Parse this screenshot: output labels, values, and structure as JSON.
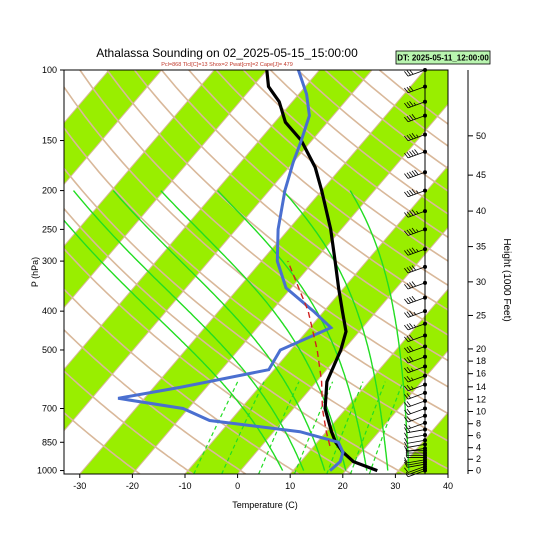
{
  "chart_data": {
    "type": "line",
    "title": "Athalassa Sounding on 02_2025-05-15_15:00:00",
    "subtitle": "Pcl=868 Tlcl[C]=13 Shox=2 Pwat[cm]=2 Cape[J]= 479",
    "valid_time_badge": "DT: 2025-05-11_12:00:00",
    "xlabel": "Temperature (C)",
    "ylabel": "P (hPa)",
    "right_axis_label": "Height (1000 Feet)",
    "xlim": [
      -33,
      40
    ],
    "plim": [
      1020,
      100
    ],
    "pressure_scale": "log",
    "skew_per_decade_C": 65,
    "x_ticks": [
      "-30",
      "-20",
      "-10",
      "0",
      "10",
      "20",
      "30",
      "40"
    ],
    "x_tick_values": [
      -30,
      -20,
      -10,
      0,
      10,
      20,
      30,
      40
    ],
    "p_ticks": [
      "100",
      "150",
      "200",
      "250",
      "300",
      "400",
      "500",
      "700",
      "850",
      "1000"
    ],
    "p_tick_values": [
      100,
      150,
      200,
      250,
      300,
      400,
      500,
      700,
      850,
      1000
    ],
    "height_ticks": [
      "0",
      "2",
      "4",
      "6",
      "8",
      "10",
      "12",
      "14",
      "16",
      "18",
      "20",
      "25",
      "30",
      "35",
      "40",
      "45",
      "50"
    ],
    "height_tick_pressures": [
      1000,
      937,
      877,
      818,
      764,
      712,
      664,
      618,
      573,
      533,
      497,
      410,
      338,
      276,
      225,
      183,
      146
    ],
    "isotherm_labels_left": [
      "-30",
      "-20",
      "-10",
      "0",
      "10",
      "20",
      "30"
    ],
    "isotherm_labels_left_values": [
      -30,
      -20,
      -10,
      0,
      10,
      20,
      30
    ],
    "mixing_ratio_labels": [
      "2",
      "3",
      "5",
      "8",
      "12",
      "16",
      "20"
    ],
    "dry_adiabat_labels": [
      "30",
      "20",
      "10",
      "0"
    ],
    "moist_adiabat_labels": [
      "8",
      "12",
      "16",
      "20",
      "24",
      "28",
      "32"
    ],
    "moist_adiabat_thetas": [
      8,
      12,
      16,
      20,
      24,
      28,
      32
    ],
    "series": [
      {
        "color": "#000000",
        "points": [
          [
            1000,
            26
          ],
          [
            950,
            20
          ],
          [
            900,
            16.5
          ],
          [
            850,
            13.5
          ],
          [
            800,
            11
          ],
          [
            700,
            6
          ],
          [
            600,
            2
          ],
          [
            500,
            -0.5
          ],
          [
            450,
            -2.5
          ],
          [
            400,
            -6.5
          ],
          [
            350,
            -11
          ],
          [
            300,
            -16
          ],
          [
            250,
            -22
          ],
          [
            200,
            -30
          ],
          [
            175,
            -35
          ],
          [
            150,
            -42
          ],
          [
            135,
            -48
          ],
          [
            120,
            -52.5
          ],
          [
            110,
            -57
          ],
          [
            100,
            -60
          ]
        ]
      },
      {
        "color": "#4a6fd0",
        "points": [
          [
            1000,
            17
          ],
          [
            950,
            17.5
          ],
          [
            900,
            16.5
          ],
          [
            850,
            14
          ],
          [
            800,
            5
          ],
          [
            750,
            -14
          ],
          [
            700,
            -21
          ],
          [
            660,
            -35
          ],
          [
            620,
            -25
          ],
          [
            560,
            -11
          ],
          [
            500,
            -12
          ],
          [
            440,
            -6
          ],
          [
            400,
            -12
          ],
          [
            350,
            -21
          ],
          [
            300,
            -27
          ],
          [
            250,
            -32
          ],
          [
            200,
            -37
          ],
          [
            170,
            -40
          ],
          [
            150,
            -42
          ],
          [
            130,
            -44.5
          ],
          [
            115,
            -48.5
          ],
          [
            100,
            -54
          ]
        ]
      },
      {
        "color": "#d02020",
        "points": [
          [
            868,
            13
          ],
          [
            800,
            10
          ],
          [
            700,
            5.5
          ],
          [
            600,
            1
          ],
          [
            500,
            -5
          ],
          [
            400,
            -13
          ],
          [
            300,
            -25
          ]
        ]
      }
    ],
    "wind_barbs": {
      "pressures": [
        1000,
        988,
        976,
        964,
        952,
        940,
        928,
        916,
        904,
        892,
        880,
        860,
        840,
        815,
        790,
        760,
        730,
        700,
        670,
        640,
        610,
        580,
        550,
        520,
        490,
        460,
        430,
        400,
        370,
        340,
        310,
        280,
        250,
        225,
        200,
        180,
        160,
        145,
        130,
        120,
        110,
        100
      ],
      "direction_deg": [
        250,
        250,
        250,
        260,
        260,
        260,
        270,
        270,
        270,
        270,
        260,
        260,
        260,
        260,
        260,
        250,
        250,
        250,
        250,
        250,
        250,
        250,
        250,
        250,
        250,
        250,
        250,
        250,
        250,
        250,
        250,
        250,
        250,
        250,
        250,
        250,
        250,
        250,
        250,
        250,
        250,
        250
      ],
      "speed_kt": [
        5,
        5,
        10,
        10,
        10,
        10,
        5,
        5,
        5,
        5,
        10,
        10,
        10,
        10,
        15,
        15,
        20,
        20,
        20,
        20,
        25,
        25,
        25,
        30,
        30,
        30,
        35,
        35,
        40,
        40,
        40,
        45,
        45,
        45,
        45,
        50,
        50,
        45,
        40,
        35,
        30,
        30
      ]
    },
    "colors": {
      "shade_band": "#99ee00",
      "isotherm": "#d9b89a",
      "dry_adiabat": "#d9b89a",
      "moist_adiabat": "#22dd22",
      "mixing_ratio": "#22dd22",
      "parcel": "#d02020"
    }
  }
}
